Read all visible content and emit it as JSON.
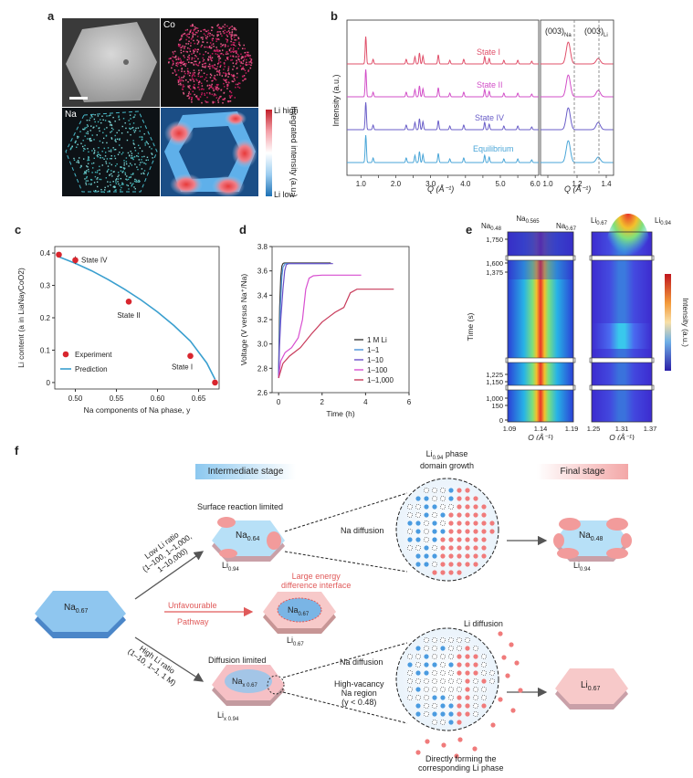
{
  "panel_labels": {
    "a": "a",
    "b": "b",
    "c": "c",
    "d": "d",
    "e": "e",
    "f": "f"
  },
  "panel_a": {
    "co_label": "Co",
    "na_label": "Na",
    "colorbar_high": "Li high",
    "colorbar_low": "Li low",
    "colorbar_title": "Integrated intensity (a.u.)"
  },
  "panel_b": {
    "ylabel": "Intensity (a.u.)",
    "xlabel": "Q (Å⁻¹)",
    "main_ticks": [
      "1.0",
      "1.5",
      "2.0",
      "2.5",
      "3.0",
      "3.5",
      "4.0",
      "4.5",
      "5.0",
      "5.5",
      "6.0"
    ],
    "main_ticks_labeled": [
      "1.0",
      "2.0",
      "3.0",
      "4.0",
      "5.0",
      "6.0"
    ],
    "zoom_ticks": [
      "1.0",
      "1.2",
      "1.4"
    ],
    "zoom_peak_na": "(003)",
    "zoom_peak_na_sub": "Na",
    "zoom_peak_li": "(003)",
    "zoom_peak_li_sub": "Li",
    "states": [
      {
        "label": "State I",
        "color": "#e0506a"
      },
      {
        "label": "State II",
        "color": "#d24fc8"
      },
      {
        "label": "State IV",
        "color": "#6a5ec8"
      },
      {
        "label": "Equilibrium",
        "color": "#4aa6d8"
      }
    ]
  },
  "chart_data": [
    {
      "type": "scatter",
      "panel": "c",
      "xlabel": "Na components of Na phase, y",
      "ylabel": "Li content (a in LiaNayCoO2)",
      "xlim": [
        0.475,
        0.675
      ],
      "ylim": [
        -0.02,
        0.42
      ],
      "xticks": [
        "0.50",
        "0.55",
        "0.60",
        "0.65"
      ],
      "yticks": [
        "0",
        "0.1",
        "0.2",
        "0.3",
        "0.4"
      ],
      "series": [
        {
          "name": "Experiment",
          "x": [
            0.48,
            0.5,
            0.565,
            0.64,
            0.67
          ],
          "y": [
            0.395,
            0.378,
            0.25,
            0.082,
            0.0
          ],
          "yerr": [
            0.008,
            0.012,
            0.006,
            0.006,
            0.004
          ]
        },
        {
          "name": "Prediction",
          "x": [
            0.48,
            0.5,
            0.52,
            0.54,
            0.56,
            0.58,
            0.6,
            0.62,
            0.64,
            0.66,
            0.67
          ],
          "y": [
            0.388,
            0.368,
            0.345,
            0.318,
            0.288,
            0.255,
            0.218,
            0.176,
            0.128,
            0.06,
            0.01
          ]
        }
      ],
      "annotations": [
        "State IV",
        "State II",
        "State I"
      ],
      "legend": "bottom-left"
    },
    {
      "type": "line",
      "panel": "d",
      "xlabel": "Time (h)",
      "ylabel": "Voltage (V versus Na⁺/Na)",
      "xlim": [
        -0.3,
        6
      ],
      "ylim": [
        2.6,
        3.8
      ],
      "xticks": [
        "0",
        "2",
        "4",
        "6"
      ],
      "yticks": [
        "2.6",
        "2.8",
        "3.0",
        "3.2",
        "3.4",
        "3.6",
        "3.8"
      ],
      "legend": "bottom-right",
      "series": [
        {
          "name": "1 M Li",
          "color": "#3a3a3a",
          "x": [
            0,
            0.02,
            0.05,
            0.1,
            0.15,
            0.2,
            0.25,
            2.4
          ],
          "y": [
            2.72,
            3.0,
            3.3,
            3.55,
            3.64,
            3.66,
            3.665,
            3.665
          ]
        },
        {
          "name": "1–1",
          "color": "#4a90d9",
          "x": [
            0,
            0.03,
            0.08,
            0.15,
            0.2,
            0.3,
            2.3
          ],
          "y": [
            2.72,
            3.0,
            3.3,
            3.55,
            3.63,
            3.66,
            3.66
          ]
        },
        {
          "name": "1–10",
          "color": "#6a4fc8",
          "x": [
            0,
            0.04,
            0.1,
            0.2,
            0.28,
            0.35,
            0.45,
            2.5
          ],
          "y": [
            2.72,
            2.98,
            3.2,
            3.45,
            3.6,
            3.65,
            3.66,
            3.66
          ]
        },
        {
          "name": "1–100",
          "color": "#d84fd0",
          "x": [
            0,
            0.1,
            0.3,
            0.6,
            0.9,
            1.1,
            1.25,
            1.4,
            1.6,
            2.0,
            3.8
          ],
          "y": [
            2.72,
            2.86,
            2.93,
            2.97,
            3.05,
            3.2,
            3.45,
            3.54,
            3.56,
            3.565,
            3.565
          ]
        },
        {
          "name": "1–1,000",
          "color": "#c83a5a",
          "x": [
            0,
            0.2,
            0.5,
            1.0,
            1.5,
            2.0,
            2.3,
            2.6,
            3.0,
            3.3,
            3.6,
            5.3
          ],
          "y": [
            2.72,
            2.84,
            2.9,
            2.97,
            3.08,
            3.18,
            3.22,
            3.26,
            3.3,
            3.42,
            3.45,
            3.45
          ]
        }
      ]
    }
  ],
  "panel_e": {
    "ylabel": "Time (s)",
    "xlabel": "Q (Å⁻¹)",
    "colorbar_label": "Intensity (a.u.)",
    "left_xticks": [
      "1.09",
      "1.14",
      "1.19"
    ],
    "right_xticks": [
      "1.25",
      "1.31",
      "1.37"
    ],
    "yticks": [
      "1,750",
      "1,600",
      "1,375",
      "1,225",
      "1,150",
      "1,000",
      "150",
      "0"
    ],
    "top_labels_left": [
      {
        "main": "Na",
        "sub": "0.48"
      },
      {
        "main": "Na",
        "sub": "0.565"
      },
      {
        "main": "Na",
        "sub": "0.67"
      }
    ],
    "top_labels_right": [
      {
        "main": "Li",
        "sub": "0.67"
      },
      {
        "main": "Li",
        "sub": "0.94"
      }
    ]
  },
  "panel_f": {
    "intermediate_stage": "Intermediate stage",
    "final_stage": "Final stage",
    "domain_growth_1": "Li",
    "domain_growth_1_sub": "0.94",
    "domain_growth_2": " phase",
    "domain_growth_3": "domain growth",
    "surface_limited": "Surface reaction limited",
    "na_diffusion_top": "Na diffusion",
    "na064": "Na",
    "na064_sub": "0.64",
    "li094_top": "Li",
    "li094_top_sub": "0.94",
    "na048": "Na",
    "na048_sub": "0.48",
    "li094_final": "Li",
    "li094_final_sub": "0.94",
    "low_ratio_1": "Low Li ratio",
    "low_ratio_2": "(1–100, 1–1,000,",
    "low_ratio_3": "1–10,000)",
    "start_na": "Na",
    "start_na_sub": "0.67",
    "unfavourable": "Unfavourable",
    "pathway": "Pathway",
    "large_energy_1": "Large energy",
    "large_energy_2": "difference interface",
    "mid_na": "Na",
    "mid_na_sub": "0.67",
    "mid_li": "Li",
    "mid_li_sub": "0.67",
    "high_ratio_1": "High Li ratio",
    "high_ratio_2": "(1–10, 1–1, 1 M)",
    "diffusion_limited": "Diffusion limited",
    "nax": "Na",
    "nax_sub": "x 0.67",
    "lix": "Li",
    "lix_sub": "x 0.94",
    "li_diffusion": "Li diffusion",
    "na_diffusion_bottom": "Na diffusion",
    "high_vac_1": "High-vacancy",
    "high_vac_2": "Na region",
    "high_vac_3": "(y < 0.48)",
    "direct_1": "Directly forming the",
    "direct_2": "corresponding Li phase",
    "li067_final": "Li",
    "li067_final_sub": "0.67"
  }
}
